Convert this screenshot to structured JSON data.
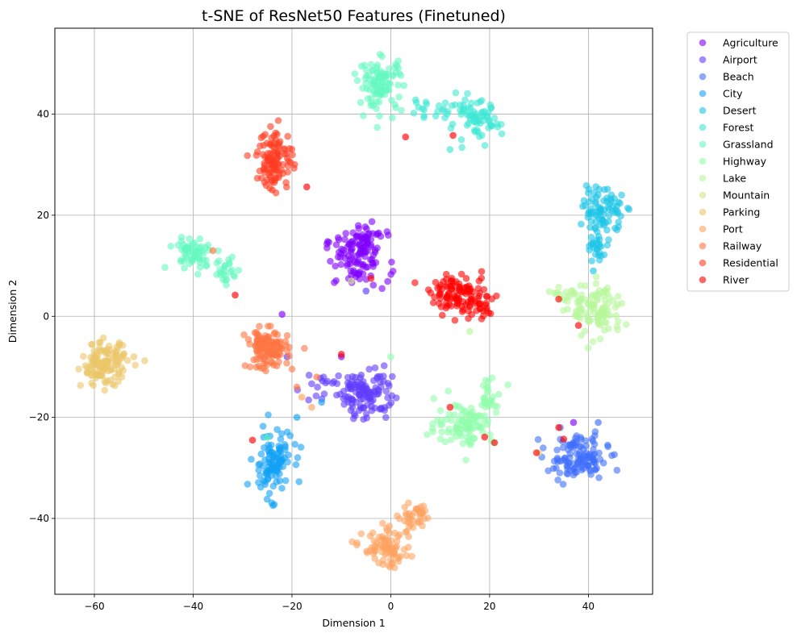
{
  "chart_data": {
    "type": "scatter",
    "title": "t-SNE of ResNet50 Features (Finetuned)",
    "xlabel": "Dimension 1",
    "ylabel": "Dimension 2",
    "xlim": [
      -68,
      53
    ],
    "ylim": [
      -55,
      57
    ],
    "xticks": [
      -60,
      -40,
      -20,
      0,
      20,
      40
    ],
    "yticks": [
      -40,
      -20,
      0,
      20,
      40
    ],
    "grid": true,
    "legend_position": "outside-right",
    "series": [
      {
        "name": "Agriculture",
        "color": "#8000ff",
        "clusters": [
          {
            "cx": -7,
            "cy": 11,
            "sx": 3.2,
            "sy": 2.6,
            "n": 90
          },
          {
            "cx": -5,
            "cy": 15,
            "sx": 1.6,
            "sy": 1.5,
            "n": 40
          }
        ],
        "outliers": [
          [
            -22,
            0.4
          ],
          [
            -10,
            -8
          ],
          [
            37,
            -21
          ]
        ]
      },
      {
        "name": "Airport",
        "color": "#5f3cfe",
        "clusters": [
          {
            "cx": -5,
            "cy": -15,
            "sx": 2.6,
            "sy": 2.6,
            "n": 110
          },
          {
            "cx": -13,
            "cy": -14,
            "sx": 3,
            "sy": 1.6,
            "n": 20
          }
        ],
        "outliers": [
          [
            -21,
            -8
          ],
          [
            -5,
            5
          ]
        ]
      },
      {
        "name": "Beach",
        "color": "#3f6ffc",
        "clusters": [
          {
            "cx": 38,
            "cy": -28,
            "sx": 3,
            "sy": 2.2,
            "n": 120
          }
        ],
        "outliers": [
          [
            42,
            -21
          ]
        ]
      },
      {
        "name": "City",
        "color": "#13a1f5",
        "clusters": [
          {
            "cx": -24,
            "cy": -29,
            "sx": 2,
            "sy": 3.2,
            "n": 110
          }
        ],
        "outliers": [
          [
            -19,
            -20
          ],
          [
            -14,
            -17
          ]
        ]
      },
      {
        "name": "Desert",
        "color": "#1cc4e6",
        "clusters": [
          {
            "cx": 43,
            "cy": 21,
            "sx": 2,
            "sy": 2.2,
            "n": 80
          },
          {
            "cx": 42,
            "cy": 14,
            "sx": 1.2,
            "sy": 2.4,
            "n": 25
          }
        ],
        "outliers": [
          [
            41,
            9
          ]
        ]
      },
      {
        "name": "Forest",
        "color": "#3ee8d3",
        "clusters": [
          {
            "cx": 17,
            "cy": 38.5,
            "sx": 2.6,
            "sy": 2,
            "n": 70
          },
          {
            "cx": 8,
            "cy": 41,
            "sx": 3,
            "sy": 0.7,
            "n": 20
          }
        ],
        "outliers": [
          [
            12,
            33
          ]
        ]
      },
      {
        "name": "Grassland",
        "color": "#64f8c0",
        "clusters": [
          {
            "cx": -2,
            "cy": 46,
            "sx": 2.2,
            "sy": 2.6,
            "n": 100
          },
          {
            "cx": -40,
            "cy": 12.5,
            "sx": 2.4,
            "sy": 1.6,
            "n": 60
          },
          {
            "cx": -33,
            "cy": 9,
            "sx": 1.3,
            "sy": 1.6,
            "n": 25
          }
        ],
        "outliers": [
          [
            -25,
            -24
          ]
        ]
      },
      {
        "name": "Highway",
        "color": "#91fdac",
        "clusters": [
          {
            "cx": 15,
            "cy": -21,
            "sx": 3,
            "sy": 2.2,
            "n": 100
          },
          {
            "cx": 20,
            "cy": -16,
            "sx": 1.5,
            "sy": 1.4,
            "n": 25
          }
        ],
        "outliers": [
          [
            0,
            -8
          ]
        ]
      },
      {
        "name": "Lake",
        "color": "#b8f79b",
        "clusters": [
          {
            "cx": 42,
            "cy": 1,
            "sx": 2.6,
            "sy": 2.6,
            "n": 100
          },
          {
            "cx": 36,
            "cy": 4,
            "sx": 1.3,
            "sy": 1,
            "n": 20
          }
        ],
        "outliers": [
          [
            16,
            -3
          ]
        ]
      },
      {
        "name": "Mountain",
        "color": "#d2e587",
        "clusters": [],
        "outliers": [
          [
            -8,
            7
          ],
          [
            30,
            -27
          ]
        ]
      },
      {
        "name": "Parking",
        "color": "#ebc769",
        "clusters": [
          {
            "cx": -58,
            "cy": -9.5,
            "sx": 2.3,
            "sy": 2.1,
            "n": 130
          }
        ],
        "outliers": [
          [
            -52,
            -8
          ]
        ]
      },
      {
        "name": "Port",
        "color": "#fea460",
        "clusters": [
          {
            "cx": -1,
            "cy": -46,
            "sx": 2.3,
            "sy": 1.8,
            "n": 80
          },
          {
            "cx": 5,
            "cy": -40,
            "sx": 1.6,
            "sy": 1.8,
            "n": 40
          }
        ],
        "outliers": [
          [
            -16,
            -18
          ],
          [
            -18,
            -16
          ]
        ]
      },
      {
        "name": "Railway",
        "color": "#ff7442",
        "clusters": [
          {
            "cx": -25,
            "cy": -6.5,
            "sx": 2.1,
            "sy": 1.9,
            "n": 120
          }
        ],
        "outliers": [
          [
            -36,
            13
          ],
          [
            -19,
            -14
          ],
          [
            -15,
            -12
          ]
        ]
      },
      {
        "name": "Residential",
        "color": "#ff3c22",
        "clusters": [
          {
            "cx": -23.5,
            "cy": 31,
            "sx": 1.8,
            "sy": 3,
            "n": 110
          }
        ],
        "outliers": [
          [
            -24,
            25
          ]
        ]
      },
      {
        "name": "River",
        "color": "#ff0000",
        "clusters": [
          {
            "cx": 14,
            "cy": 4.5,
            "sx": 3,
            "sy": 1.8,
            "n": 100
          },
          {
            "cx": 18,
            "cy": 1,
            "sx": 1.5,
            "sy": 1.2,
            "n": 20
          }
        ],
        "outliers": [
          [
            -17,
            25.6
          ],
          [
            3,
            35.5
          ],
          [
            12.6,
            35.8
          ],
          [
            -4,
            7.5
          ],
          [
            -28,
            -24.5
          ],
          [
            34,
            3.4
          ],
          [
            38,
            -1.8
          ],
          [
            34,
            -22
          ],
          [
            35,
            -24.3
          ],
          [
            19,
            -23.9
          ],
          [
            21,
            -25
          ],
          [
            29.5,
            -27
          ],
          [
            12,
            -18
          ],
          [
            -31.5,
            4.2
          ],
          [
            -10,
            -7.5
          ]
        ]
      }
    ]
  }
}
